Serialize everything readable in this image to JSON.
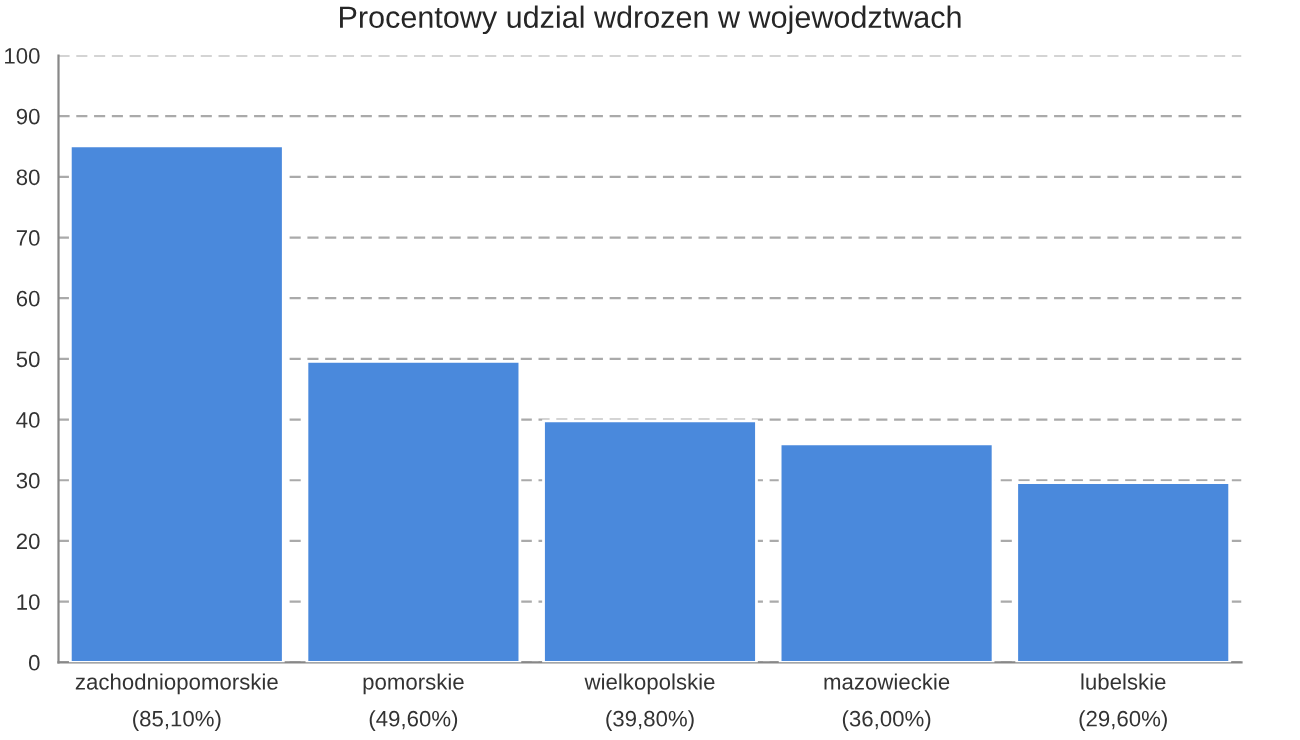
{
  "chart_data": {
    "type": "bar",
    "title": "Procentowy udzial wdrozen w wojewodztwach",
    "categories": [
      "zachodniopomorskie\n(85,10%)",
      "pomorskie\n(49,60%)",
      "wielkopolskie\n(39,80%)",
      "mazowieckie\n(36,00%)",
      "lubelskie\n(29,60%)"
    ],
    "values": [
      85.1,
      49.6,
      39.8,
      36.0,
      29.6
    ],
    "color": "#4a89dc",
    "ylim": [
      0,
      100
    ],
    "yticks": [
      0,
      10,
      20,
      30,
      40,
      50,
      60,
      70,
      80,
      90,
      100
    ],
    "grid": "y",
    "line_style": "dashed"
  }
}
